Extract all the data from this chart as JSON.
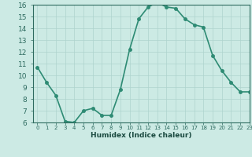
{
  "x": [
    0,
    1,
    2,
    3,
    4,
    5,
    6,
    7,
    8,
    9,
    10,
    11,
    12,
    13,
    14,
    15,
    16,
    17,
    18,
    19,
    20,
    21,
    22,
    23
  ],
  "y": [
    10.7,
    9.4,
    8.3,
    6.1,
    6.0,
    7.0,
    7.2,
    6.6,
    6.6,
    8.8,
    12.2,
    14.8,
    15.8,
    16.2,
    15.8,
    15.7,
    14.8,
    14.3,
    14.1,
    11.7,
    10.4,
    9.4,
    8.6,
    8.6
  ],
  "line_color": "#2e8b74",
  "marker_color": "#2e8b74",
  "bg_color": "#cceae4",
  "grid_color": "#aed4ce",
  "xlabel": "Humidex (Indice chaleur)",
  "ylim": [
    6,
    16
  ],
  "xlim": [
    -0.5,
    23
  ],
  "yticks": [
    6,
    7,
    8,
    9,
    10,
    11,
    12,
    13,
    14,
    15,
    16
  ],
  "xticks": [
    0,
    1,
    2,
    3,
    4,
    5,
    6,
    7,
    8,
    9,
    10,
    11,
    12,
    13,
    14,
    15,
    16,
    17,
    18,
    19,
    20,
    21,
    22,
    23
  ],
  "tick_color": "#2e6b60",
  "label_color": "#1a4a40",
  "axis_color": "#2e6b60",
  "font_size_label": 6.5,
  "font_size_tick_y": 6.5,
  "font_size_tick_x": 5.0,
  "line_width": 1.2,
  "marker_size": 2.5
}
